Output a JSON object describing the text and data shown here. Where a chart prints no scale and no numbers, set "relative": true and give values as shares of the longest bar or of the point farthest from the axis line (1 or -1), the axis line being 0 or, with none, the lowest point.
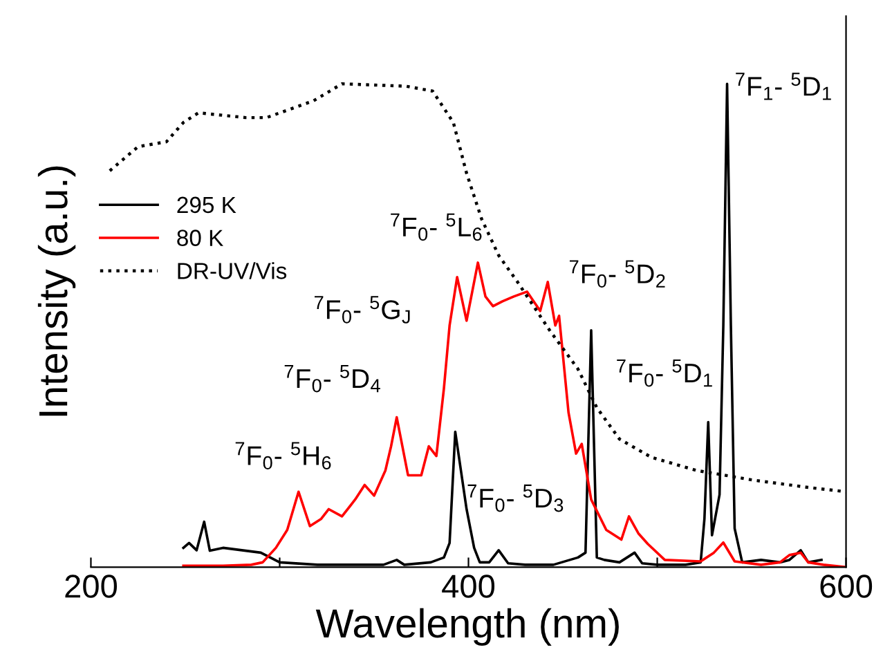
{
  "chart_data": {
    "type": "line",
    "relative": true,
    "xlabel": "Wavelength (nm)",
    "ylabel": "Intensity (a.u.)",
    "xlim": [
      200,
      600
    ],
    "xticks": [
      200,
      {
        "value": 300,
        "label": null
      },
      400,
      {
        "value": 500,
        "label": null
      },
      600
    ],
    "legend": "top left",
    "grid": false,
    "series": [
      {
        "name": "295 K",
        "color": "#000000",
        "line_style": "solid",
        "x": [
          249,
          252,
          256,
          260,
          263,
          270,
          280,
          290,
          300,
          320,
          340,
          355,
          362,
          366,
          380,
          387,
          390,
          393,
          396,
          399,
          403,
          406,
          411,
          416,
          421,
          430,
          445,
          458,
          462,
          465,
          468,
          472,
          480,
          488,
          492,
          500,
          515,
          523,
          525,
          527,
          529,
          533,
          535,
          537,
          539,
          541,
          545,
          555,
          565,
          570,
          576,
          580,
          587
        ],
        "values": [
          0.04,
          0.05,
          0.035,
          0.094,
          0.034,
          0.04,
          0.035,
          0.03,
          0.01,
          0.005,
          0.005,
          0.005,
          0.015,
          0.005,
          0.01,
          0.02,
          0.05,
          0.28,
          0.2,
          0.12,
          0.04,
          0.01,
          0.01,
          0.035,
          0.008,
          0.005,
          0.005,
          0.02,
          0.03,
          0.49,
          0.02,
          0.015,
          0.01,
          0.03,
          0.008,
          0.005,
          0.005,
          0.01,
          0.1,
          0.3,
          0.066,
          0.15,
          0.5,
          1.0,
          0.5,
          0.08,
          0.01,
          0.015,
          0.01,
          0.015,
          0.035,
          0.01,
          0.015
        ]
      },
      {
        "name": "80 K",
        "color": "#ff0000",
        "line_style": "solid",
        "x": [
          249,
          270,
          285,
          291,
          298,
          304,
          310,
          316,
          322,
          326,
          333,
          340,
          345,
          350,
          356,
          359,
          362,
          368,
          375,
          379,
          383,
          387,
          390,
          394,
          399,
          405,
          409,
          413,
          418,
          424,
          431,
          438,
          442,
          446,
          448,
          453,
          457,
          460,
          465,
          473,
          481,
          485,
          490,
          495,
          504,
          523,
          530,
          535,
          541,
          555,
          565,
          570,
          576,
          580,
          588,
          600
        ],
        "values": [
          0.003,
          0.003,
          0.005,
          0.01,
          0.04,
          0.077,
          0.156,
          0.085,
          0.1,
          0.12,
          0.105,
          0.14,
          0.17,
          0.148,
          0.2,
          0.25,
          0.31,
          0.19,
          0.19,
          0.25,
          0.23,
          0.37,
          0.5,
          0.6,
          0.51,
          0.63,
          0.56,
          0.54,
          0.55,
          0.56,
          0.57,
          0.53,
          0.59,
          0.5,
          0.52,
          0.32,
          0.235,
          0.255,
          0.14,
          0.077,
          0.057,
          0.105,
          0.07,
          0.048,
          0.015,
          0.012,
          0.03,
          0.051,
          0.012,
          0.005,
          0.01,
          0.025,
          0.03,
          0.01,
          0.005,
          0.0
        ]
      },
      {
        "name": "DR-UV/Vis",
        "color": "#000000",
        "line_style": "dotted",
        "x": [
          210,
          225,
          240,
          249,
          257,
          282,
          293,
          318,
          333,
          367,
          381,
          392,
          399,
          407,
          416,
          426,
          443,
          458,
          468,
          480,
          497,
          521,
          551,
          580,
          600
        ],
        "values": [
          0.82,
          0.87,
          0.88,
          0.92,
          0.94,
          0.93,
          0.93,
          0.965,
          1.0,
          0.995,
          0.985,
          0.92,
          0.815,
          0.72,
          0.645,
          0.59,
          0.49,
          0.41,
          0.33,
          0.265,
          0.227,
          0.2,
          0.18,
          0.165,
          0.156
        ]
      }
    ],
    "annotations": [
      "$^{7}$F$_{0}$- $^{5}$H$_{6}$",
      "$^{7}$F$_{0}$- $^{5}$D$_{4}$",
      "$^{7}$F$_{0}$- $^{5}$G$_{J}$",
      "$^{7}$F$_{0}$- $^{5}$L$_{6}$",
      "$^{7}$F$_{0}$- $^{5}$D$_{3}$",
      "$^{7}$F$_{0}$- $^{5}$D$_{2}$",
      "$^{7}$F$_{0}$- $^{5}$D$_{1}$",
      "$^{7}$F$_{1}$- $^{5}$D$_{1}$"
    ]
  }
}
